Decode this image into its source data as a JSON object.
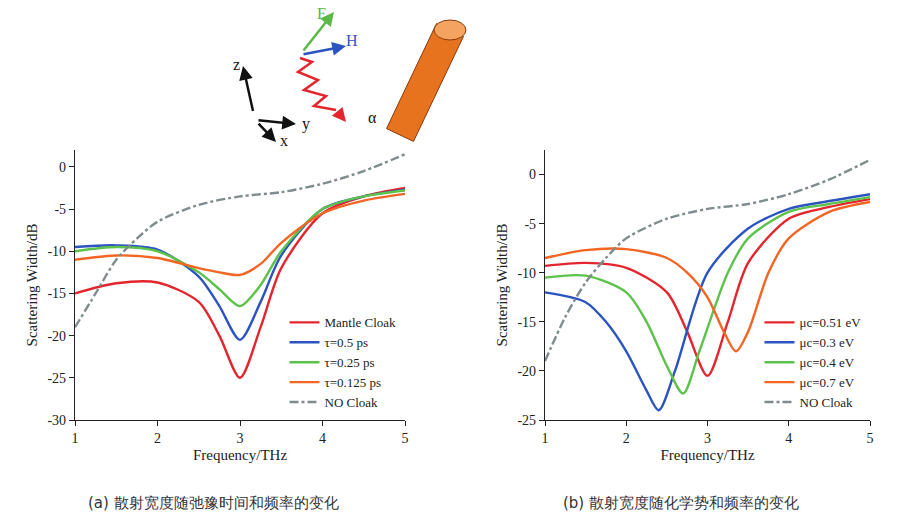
{
  "chart_data": [
    {
      "type": "line",
      "title": "(a) 散射宽度随弛豫时间和频率的变化",
      "x_label": "Frequency/THz",
      "y_label": "Scattering Width/dB",
      "annotations": [
        "E",
        "H",
        "z",
        "y",
        "x",
        "α"
      ],
      "xlim": [
        1,
        5
      ],
      "xticks": [
        1,
        2,
        3,
        4,
        5
      ],
      "ylim": [
        -30,
        2
      ],
      "yticks": [
        -30,
        -25,
        -20,
        -15,
        -10,
        -5,
        0
      ],
      "grid": false,
      "legend": "lower right",
      "series": [
        {
          "name": "Mantle Cloak",
          "color": "#e3262e",
          "line_style": "solid",
          "x": [
            1,
            1.5,
            2,
            2.5,
            2.75,
            3,
            3.25,
            3.5,
            4,
            4.5,
            5
          ],
          "values": [
            -15,
            -13.8,
            -13.7,
            -16,
            -20,
            -25,
            -19,
            -12,
            -5.5,
            -3.5,
            -2.5
          ]
        },
        {
          "name": "τ=0.5 ps",
          "color": "#2b54c0",
          "line_style": "solid",
          "x": [
            1,
            1.5,
            2,
            2.5,
            2.75,
            3,
            3.25,
            3.5,
            4,
            4.5,
            5
          ],
          "values": [
            -9.5,
            -9.3,
            -9.8,
            -13,
            -16.5,
            -20.5,
            -16,
            -10.5,
            -5,
            -3.5,
            -2.7
          ]
        },
        {
          "name": "τ=0.25 ps",
          "color": "#5cc24a",
          "line_style": "solid",
          "x": [
            1,
            1.5,
            2,
            2.5,
            2.75,
            3,
            3.25,
            3.5,
            4,
            4.5,
            5
          ],
          "values": [
            -10,
            -9.5,
            -10,
            -12.5,
            -14.5,
            -16.5,
            -14,
            -10,
            -5,
            -3.5,
            -2.8
          ]
        },
        {
          "name": "τ=0.125 ps",
          "color": "#f26522",
          "line_style": "solid",
          "x": [
            1,
            1.5,
            2,
            2.5,
            2.75,
            3,
            3.25,
            3.5,
            4,
            4.5,
            5
          ],
          "values": [
            -11,
            -10.5,
            -10.8,
            -12,
            -12.5,
            -12.8,
            -11.5,
            -9,
            -5.5,
            -4,
            -3.2
          ]
        },
        {
          "name": "NO Cloak",
          "color": "#7f8c8d",
          "line_style": "dashdot",
          "x": [
            1,
            1.25,
            1.5,
            1.75,
            2,
            2.5,
            3,
            3.5,
            4,
            4.5,
            5
          ],
          "values": [
            -19,
            -15,
            -11,
            -8.5,
            -6.5,
            -4.5,
            -3.5,
            -3,
            -2,
            -0.5,
            1.5
          ]
        }
      ]
    },
    {
      "type": "line",
      "title": "(b) 散射宽度随化学势和频率的变化",
      "x_label": "Frequency/THz",
      "y_label": "Scattering Width/dB",
      "xlim": [
        1,
        5
      ],
      "xticks": [
        1,
        2,
        3,
        4,
        5
      ],
      "ylim": [
        -25,
        2.5
      ],
      "yticks": [
        -25,
        -20,
        -15,
        -10,
        -5,
        0
      ],
      "grid": false,
      "legend": "lower right",
      "series": [
        {
          "name": "μc=0.51 eV",
          "color": "#e3262e",
          "line_style": "solid",
          "x": [
            1,
            1.5,
            2,
            2.5,
            2.75,
            3,
            3.25,
            3.5,
            4,
            4.5,
            5
          ],
          "values": [
            -9.3,
            -9,
            -9.5,
            -12,
            -16,
            -20.5,
            -15,
            -9,
            -4.5,
            -3.3,
            -2.5
          ]
        },
        {
          "name": "μc=0.3 eV",
          "color": "#2b54c0",
          "line_style": "solid",
          "x": [
            1,
            1.5,
            1.75,
            2,
            2.25,
            2.4,
            2.6,
            3,
            3.5,
            4,
            4.5,
            5
          ],
          "values": [
            -12,
            -13,
            -15,
            -18,
            -22,
            -24,
            -20,
            -10,
            -5.5,
            -3.5,
            -2.7,
            -2
          ]
        },
        {
          "name": "μc=0.4 eV",
          "color": "#5cc24a",
          "line_style": "solid",
          "x": [
            1,
            1.5,
            2,
            2.25,
            2.5,
            2.7,
            2.9,
            3.25,
            3.5,
            4,
            4.5,
            5
          ],
          "values": [
            -10.5,
            -10.3,
            -12,
            -15,
            -19.5,
            -22.3,
            -18,
            -10,
            -6.5,
            -3.8,
            -3,
            -2.3
          ]
        },
        {
          "name": "μc=0.7 eV",
          "color": "#f26522",
          "line_style": "solid",
          "x": [
            1,
            1.5,
            2,
            2.5,
            2.75,
            3,
            3.2,
            3.35,
            3.5,
            3.75,
            4,
            4.5,
            5
          ],
          "values": [
            -8.5,
            -7.7,
            -7.6,
            -8.5,
            -10,
            -12.5,
            -16,
            -18,
            -16,
            -10,
            -6.5,
            -3.8,
            -2.8
          ]
        },
        {
          "name": "NO Cloak",
          "color": "#7f8c8d",
          "line_style": "dashdot",
          "x": [
            1,
            1.25,
            1.5,
            1.75,
            2,
            2.5,
            3,
            3.5,
            4,
            4.5,
            5
          ],
          "values": [
            -19,
            -14.5,
            -11,
            -8.5,
            -6.5,
            -4.5,
            -3.5,
            -3,
            -2,
            -0.5,
            1.5
          ]
        }
      ]
    }
  ]
}
